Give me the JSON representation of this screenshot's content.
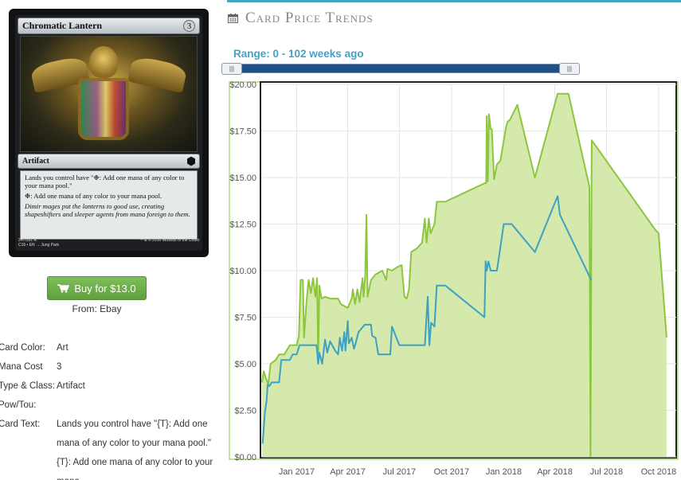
{
  "card": {
    "name": "Chromatic Lantern",
    "mana_symbol": "3",
    "type_line": "Artifact",
    "rules": [
      "Lands you control have \"❉: Add one mana of any color to your mana pool.\"",
      "❉: Add one mana of any color to your mana pool."
    ],
    "flavor": "Dimir mages put the lanterns to good use, creating shapeshifters and sleeper agents from mana foreign to them.",
    "collector": "247/351 R",
    "set_line": "C16 • EN → Jung Park",
    "copyright": "™ & © 2016 Wizards of the Coast"
  },
  "buy": {
    "label": "Buy for $13.0",
    "from": "From: Ebay",
    "icon": "cart-icon"
  },
  "details": [
    {
      "label": "Card Color:",
      "value": "Art"
    },
    {
      "label": "Mana Cost",
      "value": "3"
    },
    {
      "label": "Type & Class:",
      "value": "Artifact"
    },
    {
      "label": "Pow/Tou:",
      "value": ""
    },
    {
      "label": "Card Text:",
      "value": "Lands you control have \"{T}: Add one mana of any color to your mana pool.\" {T}: Add one mana of any color to your mana"
    }
  ],
  "trends": {
    "title": "Card Price Trends",
    "icon": "calendar-icon",
    "range_label": "Range: 0 - 102 weeks ago",
    "slider": {
      "min": 0,
      "max": 102
    },
    "colors": {
      "accent": "#3fa9c4",
      "green": "#8cc63f",
      "fill": "#d3e8a8",
      "blue": "#3da1c2"
    }
  },
  "chart_data": {
    "type": "area",
    "ylim": [
      0,
      20
    ],
    "xlim": [
      "2016-11-01",
      "2018-11-01"
    ],
    "yticks": [
      "$0.00",
      "$2.50",
      "$5.00",
      "$7.50",
      "$10.00",
      "$12.50",
      "$15.00",
      "$17.50",
      "$20.00"
    ],
    "xticks": [
      "Jan 2017",
      "Apr 2017",
      "Jul 2017",
      "Oct 2017",
      "Jan 2018",
      "Apr 2018",
      "Jul 2018",
      "Oct 2018"
    ],
    "series": [
      {
        "color": "#8cc63f",
        "filled": true,
        "points": [
          [
            "2016-11-01",
            4.0
          ],
          [
            "2016-11-04",
            4.6
          ],
          [
            "2016-11-08",
            4.2
          ],
          [
            "2016-11-12",
            3.9
          ],
          [
            "2016-11-16",
            5.0
          ],
          [
            "2016-11-25",
            5.2
          ],
          [
            "2016-12-01",
            5.5
          ],
          [
            "2016-12-10",
            5.5
          ],
          [
            "2016-12-20",
            6.0
          ],
          [
            "2017-01-01",
            6.0
          ],
          [
            "2017-01-05",
            6.5
          ],
          [
            "2017-01-08",
            9.5
          ],
          [
            "2017-01-12",
            9.5
          ],
          [
            "2017-01-14",
            6.4
          ],
          [
            "2017-01-18",
            8.2
          ],
          [
            "2017-01-22",
            9.5
          ],
          [
            "2017-01-26",
            8.8
          ],
          [
            "2017-01-30",
            9.6
          ],
          [
            "2017-02-03",
            8.6
          ],
          [
            "2017-02-06",
            9.6
          ],
          [
            "2017-02-08",
            5.0
          ],
          [
            "2017-02-10",
            9.2
          ],
          [
            "2017-02-14",
            8.5
          ],
          [
            "2017-02-20",
            8.6
          ],
          [
            "2017-03-01",
            8.5
          ],
          [
            "2017-03-15",
            8.5
          ],
          [
            "2017-03-20",
            8.2
          ],
          [
            "2017-04-01",
            8.0
          ],
          [
            "2017-04-08",
            8.5
          ],
          [
            "2017-04-10",
            9.0
          ],
          [
            "2017-04-14",
            8.2
          ],
          [
            "2017-04-18",
            9.0
          ],
          [
            "2017-04-22",
            8.3
          ],
          [
            "2017-04-27",
            9.6
          ],
          [
            "2017-04-29",
            8.6
          ],
          [
            "2017-05-02",
            9.8
          ],
          [
            "2017-05-04",
            13.0
          ],
          [
            "2017-05-06",
            8.6
          ],
          [
            "2017-05-12",
            9.5
          ],
          [
            "2017-05-20",
            9.8
          ],
          [
            "2017-06-01",
            10.0
          ],
          [
            "2017-06-08",
            9.5
          ],
          [
            "2017-06-10",
            10.1
          ],
          [
            "2017-06-18",
            10.0
          ],
          [
            "2017-06-28",
            10.2
          ],
          [
            "2017-07-05",
            10.3
          ],
          [
            "2017-07-10",
            8.6
          ],
          [
            "2017-07-14",
            8.5
          ],
          [
            "2017-07-18",
            9.0
          ],
          [
            "2017-07-22",
            11.0
          ],
          [
            "2017-08-01",
            11.2
          ],
          [
            "2017-08-10",
            11.5
          ],
          [
            "2017-08-15",
            12.8
          ],
          [
            "2017-08-18",
            11.5
          ],
          [
            "2017-08-22",
            12.8
          ],
          [
            "2017-08-25",
            12.0
          ],
          [
            "2017-09-01",
            12.5
          ],
          [
            "2017-09-05",
            13.7
          ],
          [
            "2017-09-20",
            13.7
          ],
          [
            "2017-11-29",
            14.7
          ],
          [
            "2017-12-01",
            14.7
          ],
          [
            "2017-12-02",
            18.3
          ],
          [
            "2017-12-04",
            14.8
          ],
          [
            "2017-12-06",
            18.4
          ],
          [
            "2017-12-09",
            17.6
          ],
          [
            "2017-12-11",
            17.6
          ],
          [
            "2017-12-15",
            14.9
          ],
          [
            "2017-12-20",
            15.7
          ],
          [
            "2017-12-26",
            15.9
          ],
          [
            "2018-01-05",
            17.7
          ],
          [
            "2018-01-08",
            18.0
          ],
          [
            "2018-01-12",
            18.1
          ],
          [
            "2018-01-25",
            18.9
          ],
          [
            "2018-02-25",
            15.0
          ],
          [
            "2018-04-06",
            19.5
          ],
          [
            "2018-04-25",
            19.5
          ],
          [
            "2018-06-01",
            14.5
          ],
          [
            "2018-06-03",
            0.0
          ],
          [
            "2018-06-05",
            17.0
          ],
          [
            "2018-09-25",
            12.2
          ],
          [
            "2018-10-01",
            12.0
          ],
          [
            "2018-10-15",
            6.4
          ]
        ]
      },
      {
        "color": "#3da1c2",
        "filled": false,
        "points": [
          [
            "2016-11-02",
            0.7
          ],
          [
            "2016-11-06",
            2.4
          ],
          [
            "2016-11-09",
            3.0
          ],
          [
            "2016-11-11",
            3.9
          ],
          [
            "2016-11-14",
            3.8
          ],
          [
            "2016-11-18",
            4.0
          ],
          [
            "2016-12-01",
            4.0
          ],
          [
            "2016-12-05",
            5.2
          ],
          [
            "2016-12-20",
            5.2
          ],
          [
            "2016-12-25",
            5.5
          ],
          [
            "2017-01-01",
            5.5
          ],
          [
            "2017-01-06",
            6.0
          ],
          [
            "2017-01-20",
            6.0
          ],
          [
            "2017-02-05",
            6.0
          ],
          [
            "2017-02-08",
            5.0
          ],
          [
            "2017-02-10",
            5.6
          ],
          [
            "2017-02-15",
            5.0
          ],
          [
            "2017-02-20",
            6.3
          ],
          [
            "2017-02-24",
            5.6
          ],
          [
            "2017-03-01",
            6.2
          ],
          [
            "2017-03-10",
            5.7
          ],
          [
            "2017-03-15",
            5.5
          ],
          [
            "2017-03-18",
            6.4
          ],
          [
            "2017-03-22",
            5.7
          ],
          [
            "2017-03-26",
            6.7
          ],
          [
            "2017-03-28",
            5.7
          ],
          [
            "2017-04-01",
            7.3
          ],
          [
            "2017-04-03",
            6.1
          ],
          [
            "2017-04-08",
            6.4
          ],
          [
            "2017-04-12",
            5.8
          ],
          [
            "2017-04-15",
            6.1
          ],
          [
            "2017-04-20",
            6.7
          ],
          [
            "2017-05-01",
            7.1
          ],
          [
            "2017-05-12",
            7.1
          ],
          [
            "2017-05-14",
            6.5
          ],
          [
            "2017-05-20",
            6.4
          ],
          [
            "2017-05-25",
            5.5
          ],
          [
            "2017-06-15",
            5.5
          ],
          [
            "2017-06-18",
            7.0
          ],
          [
            "2017-07-01",
            6.0
          ],
          [
            "2017-07-15",
            6.0
          ],
          [
            "2017-08-15",
            6.0
          ],
          [
            "2017-08-20",
            8.6
          ],
          [
            "2017-08-23",
            6.0
          ],
          [
            "2017-08-26",
            7.2
          ],
          [
            "2017-09-01",
            7.0
          ],
          [
            "2017-09-05",
            9.2
          ],
          [
            "2017-09-20",
            9.2
          ],
          [
            "2017-11-28",
            7.5
          ],
          [
            "2017-11-30",
            10.5
          ],
          [
            "2017-12-02",
            10.0
          ],
          [
            "2017-12-05",
            10.5
          ],
          [
            "2017-12-09",
            10.0
          ],
          [
            "2017-12-20",
            10.0
          ],
          [
            "2018-01-01",
            12.5
          ],
          [
            "2018-01-15",
            12.5
          ],
          [
            "2018-02-25",
            11.0
          ],
          [
            "2018-04-06",
            14.0
          ],
          [
            "2018-04-10",
            13.0
          ],
          [
            "2018-06-04",
            9.5
          ]
        ]
      }
    ],
    "grid": true
  }
}
